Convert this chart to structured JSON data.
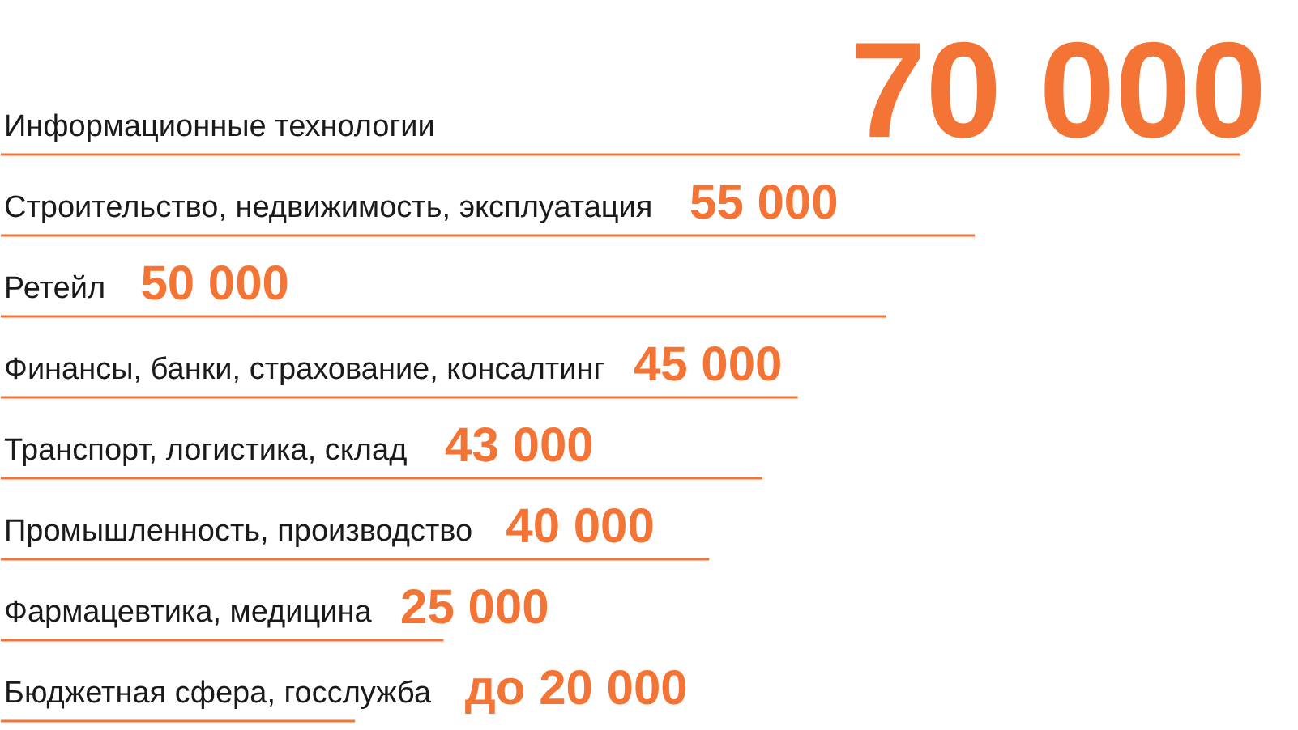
{
  "chart_data": {
    "type": "bar",
    "orientation": "horizontal",
    "categories": [
      "Информационные технологии",
      "Строительство, недвижимость, эксплуатация",
      "Ретейл",
      "Финансы, банки, страхование, консалтинг",
      "Транспорт, логистика, склад",
      "Промышленность, производство",
      "Фармацевтика, медицина",
      "Бюджетная сфера, госслужба"
    ],
    "values": [
      70000,
      55000,
      50000,
      45000,
      43000,
      40000,
      25000,
      20000
    ],
    "value_labels": [
      "70 000",
      "55 000",
      "50 000",
      "45 000",
      "43 000",
      "40 000",
      "25 000",
      "до 20 000"
    ],
    "color": "#f37435"
  }
}
